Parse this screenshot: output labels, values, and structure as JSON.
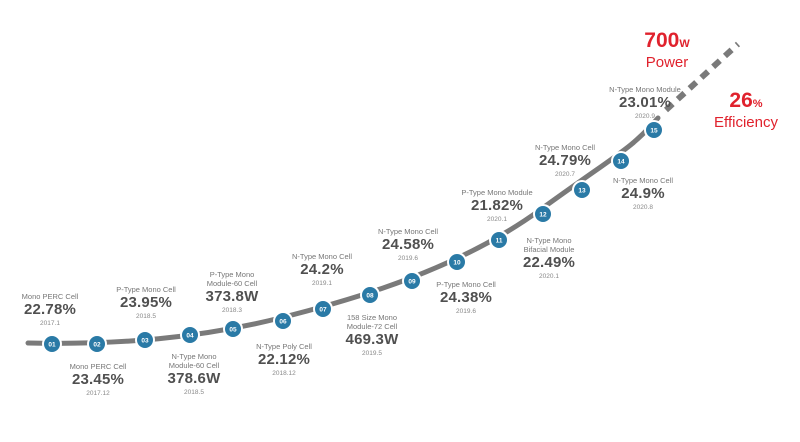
{
  "colors": {
    "curve": "#7a7a7a",
    "node_fill": "#2a7aa6",
    "node_ring": "#ffffff",
    "accent_red": "#e0222d"
  },
  "milestones": [
    {
      "id": "01",
      "name": "Mono PERC Cell",
      "value": "22.78%",
      "date": "2017.1"
    },
    {
      "id": "02",
      "name": "Mono PERC Cell",
      "value": "23.45%",
      "date": "2017.12"
    },
    {
      "id": "03",
      "name": "P-Type Mono Cell",
      "value": "23.95%",
      "date": "2018.5"
    },
    {
      "id": "04",
      "name": "N-Type Mono Module-60 Cell",
      "value": "378.6W",
      "date": "2018.5"
    },
    {
      "id": "05",
      "name": "P-Type Mono Module-60 Cell",
      "value": "373.8W",
      "date": "2018.3"
    },
    {
      "id": "06",
      "name": "N-Type Poly Cell",
      "value": "22.12%",
      "date": "2018.12"
    },
    {
      "id": "07",
      "name": "N-Type Mono Cell",
      "value": "24.2%",
      "date": "2019.1"
    },
    {
      "id": "08",
      "name": "158 Size Mono Module-72 Cell",
      "value": "469.3W",
      "date": "2019.5"
    },
    {
      "id": "09",
      "name": "N-Type Mono Cell",
      "value": "24.58%",
      "date": "2019.6"
    },
    {
      "id": "10",
      "name": "P-Type Mono Cell",
      "value": "24.38%",
      "date": "2019.6"
    },
    {
      "id": "11",
      "name": "P-Type Mono Module",
      "value": "21.82%",
      "date": "2020.1"
    },
    {
      "id": "12",
      "name": "N-Type Mono Bifacial Module",
      "value": "22.49%",
      "date": "2020.1"
    },
    {
      "id": "13",
      "name": "N-Type Mono Cell",
      "value": "24.79%",
      "date": "2020.7"
    },
    {
      "id": "14",
      "name": "N-Type Mono Cell",
      "value": "24.9%",
      "date": "2020.8"
    },
    {
      "id": "15",
      "name": "N-Type Mono Module",
      "value": "23.01%",
      "date": "2020.9"
    }
  ],
  "goals": {
    "power": {
      "value": "700",
      "unit": "W",
      "label": "Power"
    },
    "efficiency": {
      "value": "26",
      "unit": "%",
      "label": "Efficiency"
    }
  }
}
